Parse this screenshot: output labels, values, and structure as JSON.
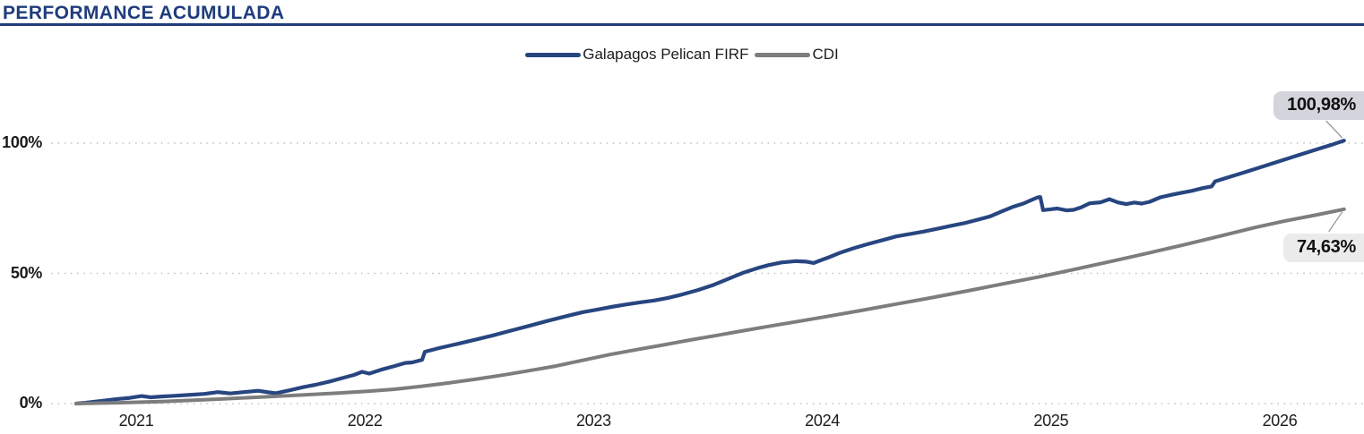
{
  "header": {
    "title": "PERFORMANCE ACUMULADA"
  },
  "legend": {
    "items": [
      {
        "label": "Galapagos Pelican FIRF",
        "color": "#274680"
      },
      {
        "label": "CDI",
        "color": "#7d7d7d"
      }
    ]
  },
  "colors": {
    "title_accent": "#1f3c7c",
    "fund_line": "#274680",
    "cdi_line": "#7d7d7d",
    "grid_dots": "#c9c9c9",
    "fund_label_bg": "#d4d4dc",
    "cdi_label_bg": "#ebebeb"
  },
  "chart_data": {
    "type": "line",
    "title": "PERFORMANCE ACUMULADA",
    "xlabel": "",
    "ylabel": "",
    "grid": "horizontal dotted at y ticks",
    "legend_position": "top center",
    "xlim": [
      2020.72,
      2026.36
    ],
    "ylim": [
      0,
      105
    ],
    "x_ticks": [
      {
        "value": 2021,
        "label": "2021"
      },
      {
        "value": 2022,
        "label": "2022"
      },
      {
        "value": 2023,
        "label": "2023"
      },
      {
        "value": 2024,
        "label": "2024"
      },
      {
        "value": 2025,
        "label": "2025"
      },
      {
        "value": 2026,
        "label": "2026"
      }
    ],
    "y_ticks": [
      {
        "value": 0,
        "label": "0%"
      },
      {
        "value": 50,
        "label": "50%"
      },
      {
        "value": 100,
        "label": "100%"
      }
    ],
    "series": [
      {
        "name": "Galapagos Pelican FIRF",
        "color": "#274680",
        "end_label": "100,98%",
        "end_value": 100.98,
        "points": [
          [
            2020.737,
            0
          ],
          [
            2020.777,
            0.3
          ],
          [
            2020.816,
            0.7
          ],
          [
            2020.867,
            1.2
          ],
          [
            2020.922,
            1.8
          ],
          [
            2020.973,
            2.2
          ],
          [
            2021.024,
            2.9
          ],
          [
            2021.063,
            2.4
          ],
          [
            2021.11,
            2.7
          ],
          [
            2021.168,
            3.0
          ],
          [
            2021.227,
            3.3
          ],
          [
            2021.298,
            3.7
          ],
          [
            2021.357,
            4.4
          ],
          [
            2021.411,
            3.9
          ],
          [
            2021.47,
            4.4
          ],
          [
            2021.533,
            4.9
          ],
          [
            2021.58,
            4.3
          ],
          [
            2021.611,
            4.0
          ],
          [
            2021.666,
            5.0
          ],
          [
            2021.729,
            6.3
          ],
          [
            2021.784,
            7.2
          ],
          [
            2021.846,
            8.5
          ],
          [
            2021.901,
            9.8
          ],
          [
            2021.952,
            11.0
          ],
          [
            2021.988,
            12.2
          ],
          [
            2022.019,
            11.5
          ],
          [
            2022.07,
            13.0
          ],
          [
            2022.129,
            14.4
          ],
          [
            2022.176,
            15.6
          ],
          [
            2022.207,
            15.8
          ],
          [
            2022.25,
            16.8
          ],
          [
            2022.262,
            19.9
          ],
          [
            2022.324,
            21.3
          ],
          [
            2022.403,
            22.9
          ],
          [
            2022.481,
            24.5
          ],
          [
            2022.56,
            26.2
          ],
          [
            2022.638,
            28.0
          ],
          [
            2022.716,
            29.8
          ],
          [
            2022.795,
            31.7
          ],
          [
            2022.873,
            33.4
          ],
          [
            2022.951,
            35.1
          ],
          [
            2023.022,
            36.2
          ],
          [
            2023.088,
            37.3
          ],
          [
            2023.147,
            38.1
          ],
          [
            2023.206,
            38.9
          ],
          [
            2023.265,
            39.6
          ],
          [
            2023.323,
            40.5
          ],
          [
            2023.382,
            41.8
          ],
          [
            2023.453,
            43.5
          ],
          [
            2023.519,
            45.4
          ],
          [
            2023.586,
            47.8
          ],
          [
            2023.656,
            50.3
          ],
          [
            2023.715,
            52.0
          ],
          [
            2023.766,
            53.2
          ],
          [
            2023.821,
            54.2
          ],
          [
            2023.884,
            54.7
          ],
          [
            2023.931,
            54.5
          ],
          [
            2023.962,
            54.0
          ],
          [
            2023.993,
            55.0
          ],
          [
            2024.029,
            56.2
          ],
          [
            2024.08,
            58.0
          ],
          [
            2024.134,
            59.6
          ],
          [
            2024.197,
            61.2
          ],
          [
            2024.264,
            62.8
          ],
          [
            2024.323,
            64.2
          ],
          [
            2024.381,
            65.1
          ],
          [
            2024.44,
            66.0
          ],
          [
            2024.511,
            67.3
          ],
          [
            2024.566,
            68.3
          ],
          [
            2024.617,
            69.2
          ],
          [
            2024.675,
            70.5
          ],
          [
            2024.734,
            71.9
          ],
          [
            2024.785,
            73.8
          ],
          [
            2024.832,
            75.5
          ],
          [
            2024.879,
            76.8
          ],
          [
            2024.918,
            78.3
          ],
          [
            2024.942,
            79.2
          ],
          [
            2024.953,
            79.3
          ],
          [
            2024.965,
            74.3
          ],
          [
            2024.996,
            74.6
          ],
          [
            2025.028,
            74.9
          ],
          [
            2025.067,
            74.2
          ],
          [
            2025.098,
            74.4
          ],
          [
            2025.13,
            75.3
          ],
          [
            2025.169,
            76.9
          ],
          [
            2025.216,
            77.3
          ],
          [
            2025.255,
            78.5
          ],
          [
            2025.294,
            77.2
          ],
          [
            2025.329,
            76.6
          ],
          [
            2025.365,
            77.2
          ],
          [
            2025.396,
            76.8
          ],
          [
            2025.431,
            77.5
          ],
          [
            2025.478,
            79.2
          ],
          [
            2025.529,
            80.2
          ],
          [
            2025.568,
            80.9
          ],
          [
            2025.615,
            81.7
          ],
          [
            2025.662,
            82.7
          ],
          [
            2025.702,
            83.4
          ],
          [
            2025.717,
            85.3
          ],
          [
            2025.772,
            86.8
          ],
          [
            2025.842,
            88.7
          ],
          [
            2025.921,
            90.9
          ],
          [
            2025.999,
            93.1
          ],
          [
            2026.085,
            95.5
          ],
          [
            2026.172,
            97.9
          ],
          [
            2026.234,
            99.6
          ],
          [
            2026.281,
            100.98
          ]
        ]
      },
      {
        "name": "CDI",
        "color": "#7d7d7d",
        "end_label": "74,63%",
        "end_value": 74.63,
        "points": [
          [
            2020.737,
            0
          ],
          [
            2020.914,
            0.3
          ],
          [
            2021.11,
            0.8
          ],
          [
            2021.306,
            1.5
          ],
          [
            2021.502,
            2.3
          ],
          [
            2021.697,
            3.2
          ],
          [
            2021.893,
            4.1
          ],
          [
            2022.011,
            4.7
          ],
          [
            2022.129,
            5.5
          ],
          [
            2022.246,
            6.6
          ],
          [
            2022.364,
            7.9
          ],
          [
            2022.481,
            9.3
          ],
          [
            2022.599,
            10.9
          ],
          [
            2022.716,
            12.6
          ],
          [
            2022.834,
            14.4
          ],
          [
            2022.951,
            16.6
          ],
          [
            2023.069,
            18.8
          ],
          [
            2023.186,
            20.7
          ],
          [
            2023.304,
            22.5
          ],
          [
            2023.421,
            24.4
          ],
          [
            2023.539,
            26.2
          ],
          [
            2023.656,
            28.0
          ],
          [
            2023.774,
            29.8
          ],
          [
            2023.891,
            31.5
          ],
          [
            2024.017,
            33.4
          ],
          [
            2024.166,
            35.7
          ],
          [
            2024.323,
            38.2
          ],
          [
            2024.479,
            40.7
          ],
          [
            2024.636,
            43.3
          ],
          [
            2024.793,
            46.0
          ],
          [
            2024.95,
            48.7
          ],
          [
            2025.106,
            51.6
          ],
          [
            2025.263,
            54.6
          ],
          [
            2025.42,
            57.7
          ],
          [
            2025.577,
            60.9
          ],
          [
            2025.733,
            64.2
          ],
          [
            2025.89,
            67.6
          ],
          [
            2026.027,
            70.2
          ],
          [
            2026.164,
            72.5
          ],
          [
            2026.281,
            74.63
          ]
        ]
      }
    ]
  }
}
